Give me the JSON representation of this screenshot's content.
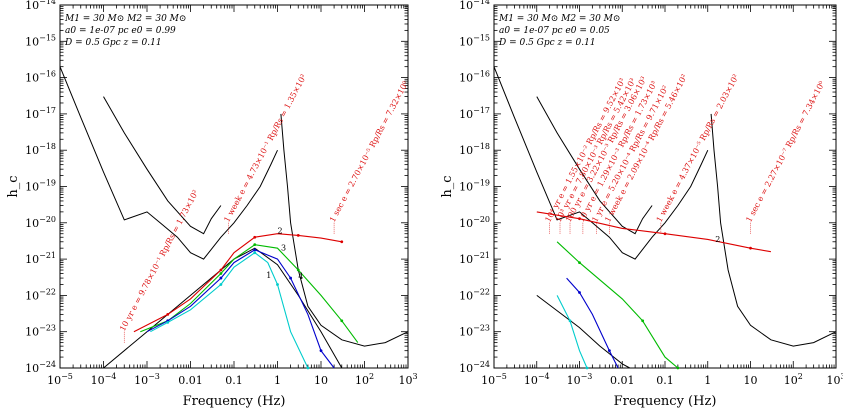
{
  "chart_data": [
    {
      "type": "line",
      "panel": "left",
      "xlabel": "Frequency (Hz)",
      "ylabel": "h_c",
      "xscale": "log",
      "yscale": "log",
      "xlim": [
        1e-05,
        1000
      ],
      "ylim": [
        1e-24,
        1e-14
      ],
      "x_tick_labels": [
        "10^-5",
        "10^-4",
        "10^-3",
        "0.01",
        "0.1",
        "1",
        "10",
        "10^2",
        "10^3"
      ],
      "y_tick_labels": [
        "10^-24",
        "10^-23",
        "10^-22",
        "10^-21",
        "10^-20",
        "10^-19",
        "10^-18",
        "10^-17",
        "10^-16",
        "10^-15",
        "10^-14"
      ],
      "info_lines": [
        "M1 = 30 M⊙  M2 = 30 M⊙",
        "a0 = 1e-07 pc   e0 = 0.99",
        "D = 0.5 Gpc  z = 0.11"
      ],
      "annotations": [
        {
          "text": "10 yr  e = 9.78×10⁻¹  Rp/Rs = 1.73×10²",
          "x": 0.0003,
          "y": 1e-23
        },
        {
          "text": "1 week  e = 4.73×10⁻¹  Rp/Rs = 1.35×10²",
          "x": 0.075,
          "y": 1e-20
        },
        {
          "text": "1 sec  e = 2.70×10⁻⁵  Rp/Rs = 7.32×10⁰",
          "x": 20,
          "y": 1e-20
        }
      ],
      "harmonic_labels": [
        {
          "text": "2",
          "x": 1.0,
          "y": 5e-21
        },
        {
          "text": "1",
          "x": 0.55,
          "y": 3e-22
        },
        {
          "text": "3",
          "x": 1.2,
          "y": 1.7e-21
        },
        {
          "text": "4",
          "x": 3.0,
          "y": 2.8e-22
        }
      ],
      "series": [
        {
          "id": "detector-lisa",
          "color": "#000000",
          "points": [
            [
              1e-05,
              2e-16
            ],
            [
              3e-05,
              8e-18
            ],
            [
              0.0001,
              2.5e-19
            ],
            [
              0.0003,
              1.2e-20
            ],
            [
              0.001,
              2e-20
            ],
            [
              0.002,
              1e-20
            ],
            [
              0.005,
              4e-21
            ],
            [
              0.01,
              1.5e-21
            ],
            [
              0.02,
              1e-21
            ],
            [
              0.05,
              4e-21
            ],
            [
              0.1,
              1e-20
            ],
            [
              0.2,
              3e-20
            ],
            [
              0.4,
              1e-19
            ],
            [
              0.7,
              4e-19
            ],
            [
              1.0,
              1e-18
            ]
          ]
        },
        {
          "id": "detector-decigo",
          "color": "#000000",
          "points": [
            [
              0.0001,
              3e-17
            ],
            [
              0.0003,
              3e-18
            ],
            [
              0.001,
              3e-19
            ],
            [
              0.003,
              4e-20
            ],
            [
              0.01,
              8e-21
            ],
            [
              0.02,
              5e-21
            ],
            [
              0.03,
              1.3e-20
            ],
            [
              0.05,
              3e-20
            ]
          ]
        },
        {
          "id": "detector-ground",
          "color": "#000000",
          "points": [
            [
              1.2,
              1e-17
            ],
            [
              1.4,
              1e-18
            ],
            [
              1.7,
              1e-19
            ],
            [
              2.0,
              1e-20
            ],
            [
              3,
              5e-22
            ],
            [
              5,
              5e-23
            ],
            [
              10,
              1.5e-23
            ],
            [
              30,
              6e-24
            ],
            [
              100,
              4e-24
            ],
            [
              300,
              5e-24
            ],
            [
              1000,
              1e-23
            ]
          ]
        },
        {
          "id": "track-black",
          "color": "#000000",
          "points": [
            [
              0.0001,
              1e-24
            ],
            [
              0.001,
              1e-23
            ],
            [
              0.01,
              1e-22
            ],
            [
              0.05,
              5e-22
            ],
            [
              0.1,
              1e-21
            ],
            [
              0.3,
              2e-21
            ],
            [
              1.0,
              7e-22
            ],
            [
              3,
              1e-22
            ],
            [
              10,
              1e-23
            ],
            [
              30,
              1e-24
            ]
          ]
        },
        {
          "id": "harmonic-2-red",
          "color": "#dd0000",
          "points": [
            [
              0.0005,
              1e-23
            ],
            [
              0.003,
              3e-23
            ],
            [
              0.01,
              8e-23
            ],
            [
              0.05,
              5e-22
            ],
            [
              0.1,
              1.5e-21
            ],
            [
              0.3,
              4e-21
            ],
            [
              1.0,
              5e-21
            ],
            [
              3,
              4.5e-21
            ],
            [
              10,
              3.8e-21
            ],
            [
              30,
              3e-21
            ]
          ]
        },
        {
          "id": "harmonic-3-green",
          "color": "#00bb00",
          "points": [
            [
              0.0007,
              1e-23
            ],
            [
              0.003,
              2e-23
            ],
            [
              0.01,
              6e-23
            ],
            [
              0.05,
              4e-22
            ],
            [
              0.1,
              1e-21
            ],
            [
              0.3,
              2.5e-21
            ],
            [
              1.0,
              2e-21
            ],
            [
              3,
              5e-22
            ],
            [
              10,
              1e-22
            ],
            [
              30,
              2e-23
            ],
            [
              70,
              5e-24
            ]
          ]
        },
        {
          "id": "harmonic-4-blue",
          "color": "#0000cc",
          "points": [
            [
              0.001,
              1e-23
            ],
            [
              0.003,
              2e-23
            ],
            [
              0.01,
              5e-23
            ],
            [
              0.05,
              3e-22
            ],
            [
              0.1,
              8e-22
            ],
            [
              0.3,
              1.8e-21
            ],
            [
              1.0,
              1e-21
            ],
            [
              2,
              3e-22
            ],
            [
              5,
              3e-23
            ],
            [
              10,
              3e-24
            ],
            [
              20,
              1e-24
            ]
          ]
        },
        {
          "id": "harmonic-5-cyan",
          "color": "#00cccc",
          "points": [
            [
              0.0012,
              1e-23
            ],
            [
              0.003,
              1.8e-23
            ],
            [
              0.01,
              4e-23
            ],
            [
              0.05,
              2e-22
            ],
            [
              0.1,
              6e-22
            ],
            [
              0.3,
              1.5e-21
            ],
            [
              0.6,
              8e-22
            ],
            [
              1.0,
              2e-22
            ],
            [
              2,
              1e-23
            ],
            [
              5,
              1e-24
            ]
          ]
        }
      ]
    },
    {
      "type": "line",
      "panel": "right",
      "xlabel": "Frequency (Hz)",
      "ylabel": "h_c",
      "xscale": "log",
      "yscale": "log",
      "xlim": [
        1e-05,
        1000
      ],
      "ylim": [
        1e-24,
        1e-14
      ],
      "x_tick_labels": [
        "10^-5",
        "10^-4",
        "10^-3",
        "0.01",
        "0.1",
        "1",
        "10",
        "10^2",
        "10^3"
      ],
      "y_tick_labels": [
        "10^-24",
        "10^-23",
        "10^-22",
        "10^-21",
        "10^-20",
        "10^-19",
        "10^-18",
        "10^-17",
        "10^-16",
        "10^-15",
        "10^-14"
      ],
      "info_lines": [
        "M1 = 30 M⊙  M2 = 30 M⊙",
        "a0 = 1e-07 pc   e0 = 0.05",
        "D = 0.5 Gpc  z = 0.11"
      ],
      "annotations": [
        {
          "text": "10⁴ yr  e = 1.55×10⁻² Rp/Rs = 9.52×10³",
          "x": 0.0002,
          "y": 1e-20
        },
        {
          "text": "10³ yr  e = 7.80×10⁻³ Rp/Rs = 5.42×10³",
          "x": 0.00035,
          "y": 1e-20
        },
        {
          "text": "100 yr  e = 3.22×10⁻³ Rp/Rs = 3.06×10³",
          "x": 0.0006,
          "y": 1e-20
        },
        {
          "text": "10 yr  e = 1.29×10⁻³ Rp/Rs = 1.73×10³",
          "x": 0.0012,
          "y": 1e-20
        },
        {
          "text": "1 yr  e = 5.20×10⁻⁴ Rp/Rs = 9.71×10²",
          "x": 0.0025,
          "y": 1e-20
        },
        {
          "text": "1 week  e = 2.09×10⁻⁴ Rp/Rs = 5.46×10²",
          "x": 0.005,
          "y": 1e-20
        },
        {
          "text": "1 week  e = 4.37×10⁻⁵ Rp/Rs = 2.03×10²",
          "x": 0.08,
          "y": 1e-20
        },
        {
          "text": "1 sec  e = 2.27×10⁻⁷ Rp/Rs = 7.34×10⁰",
          "x": 10,
          "y": 1e-20
        }
      ],
      "harmonic_labels": [
        {
          "text": "2",
          "x": 1.5,
          "y": 3e-21
        }
      ],
      "series": [
        {
          "id": "detector-lisa",
          "color": "#000000",
          "points": [
            [
              1e-05,
              2e-16
            ],
            [
              3e-05,
              8e-18
            ],
            [
              0.0001,
              2.5e-19
            ],
            [
              0.0003,
              1.2e-20
            ],
            [
              0.001,
              2e-20
            ],
            [
              0.002,
              1e-20
            ],
            [
              0.005,
              4e-21
            ],
            [
              0.01,
              1.5e-21
            ],
            [
              0.02,
              1e-21
            ],
            [
              0.05,
              4e-21
            ],
            [
              0.1,
              1e-20
            ],
            [
              0.2,
              3e-20
            ],
            [
              0.4,
              1e-19
            ],
            [
              0.7,
              4e-19
            ],
            [
              1.0,
              1e-18
            ]
          ]
        },
        {
          "id": "detector-decigo",
          "color": "#000000",
          "points": [
            [
              0.0001,
              3e-17
            ],
            [
              0.0003,
              3e-18
            ],
            [
              0.001,
              3e-19
            ],
            [
              0.003,
              4e-20
            ],
            [
              0.01,
              8e-21
            ],
            [
              0.02,
              5e-21
            ],
            [
              0.03,
              1.3e-20
            ],
            [
              0.05,
              3e-20
            ]
          ]
        },
        {
          "id": "detector-ground",
          "color": "#000000",
          "points": [
            [
              1.2,
              1e-17
            ],
            [
              1.4,
              1e-18
            ],
            [
              1.7,
              1e-19
            ],
            [
              2.0,
              1e-20
            ],
            [
              3,
              5e-22
            ],
            [
              5,
              5e-23
            ],
            [
              10,
              1.5e-23
            ],
            [
              30,
              6e-24
            ],
            [
              100,
              4e-24
            ],
            [
              300,
              5e-24
            ],
            [
              1000,
              1e-23
            ]
          ]
        },
        {
          "id": "harmonic-2-red",
          "color": "#dd0000",
          "points": [
            [
              0.0001,
              2e-20
            ],
            [
              0.001,
              1.3e-20
            ],
            [
              0.01,
              7e-21
            ],
            [
              0.1,
              5e-21
            ],
            [
              1.0,
              3.5e-21
            ],
            [
              10,
              2e-21
            ],
            [
              30,
              1.6e-21
            ]
          ]
        },
        {
          "id": "track-black",
          "color": "#000000",
          "points": [
            [
              0.0001,
              1e-22
            ],
            [
              0.001,
              1.3e-23
            ],
            [
              0.003,
              4e-24
            ],
            [
              0.01,
              1.3e-24
            ],
            [
              0.015,
              1e-24
            ]
          ]
        },
        {
          "id": "harmonic-3-green",
          "color": "#00bb00",
          "points": [
            [
              0.0003,
              3e-21
            ],
            [
              0.001,
              8e-22
            ],
            [
              0.01,
              8e-23
            ],
            [
              0.03,
              2e-23
            ],
            [
              0.1,
              2e-24
            ],
            [
              0.2,
              1e-24
            ]
          ]
        },
        {
          "id": "harmonic-4-blue",
          "color": "#0000cc",
          "points": [
            [
              0.0005,
              3e-22
            ],
            [
              0.001,
              1.2e-22
            ],
            [
              0.002,
              3e-23
            ],
            [
              0.005,
              3e-24
            ],
            [
              0.008,
              1e-24
            ]
          ]
        },
        {
          "id": "harmonic-5-cyan",
          "color": "#00cccc",
          "points": [
            [
              0.0003,
              1e-22
            ],
            [
              0.0006,
              2e-23
            ],
            [
              0.001,
              3e-24
            ],
            [
              0.0015,
              1e-24
            ]
          ]
        }
      ]
    }
  ]
}
